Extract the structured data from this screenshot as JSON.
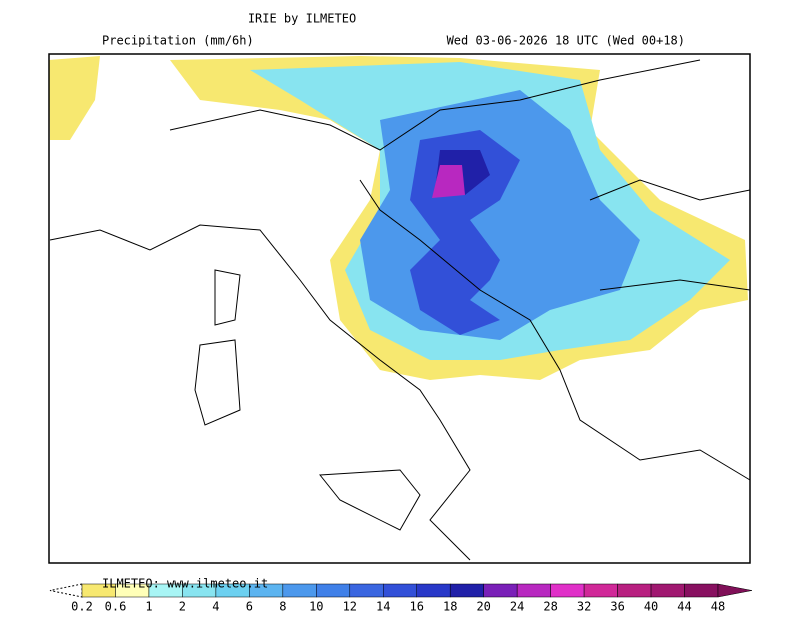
{
  "header": {
    "title": "IRIE by ILMETEO",
    "subtitle_left": "Precipitation (mm/6h)",
    "subtitle_right": "Wed 03-06-2026 18 UTC (Wed 00+18)"
  },
  "watermark": "ILMETEO: www.ilmeteo.it",
  "legend": {
    "labels": [
      "0.2",
      "0.6",
      "1",
      "2",
      "4",
      "6",
      "8",
      "10",
      "12",
      "14",
      "16",
      "18",
      "20",
      "24",
      "28",
      "32",
      "36",
      "40",
      "44",
      "48"
    ],
    "colors": [
      "#f7e870",
      "#ffffb8",
      "#a8f5f5",
      "#88e4f0",
      "#6cd0f0",
      "#5cb4f0",
      "#4c98ec",
      "#4080e8",
      "#3a66e0",
      "#3250d8",
      "#2838c8",
      "#2020a8",
      "#7a20b8",
      "#b828c0",
      "#e030c8",
      "#d02898",
      "#b82080",
      "#a01870",
      "#881060"
    ],
    "end_color": "#801058"
  }
}
